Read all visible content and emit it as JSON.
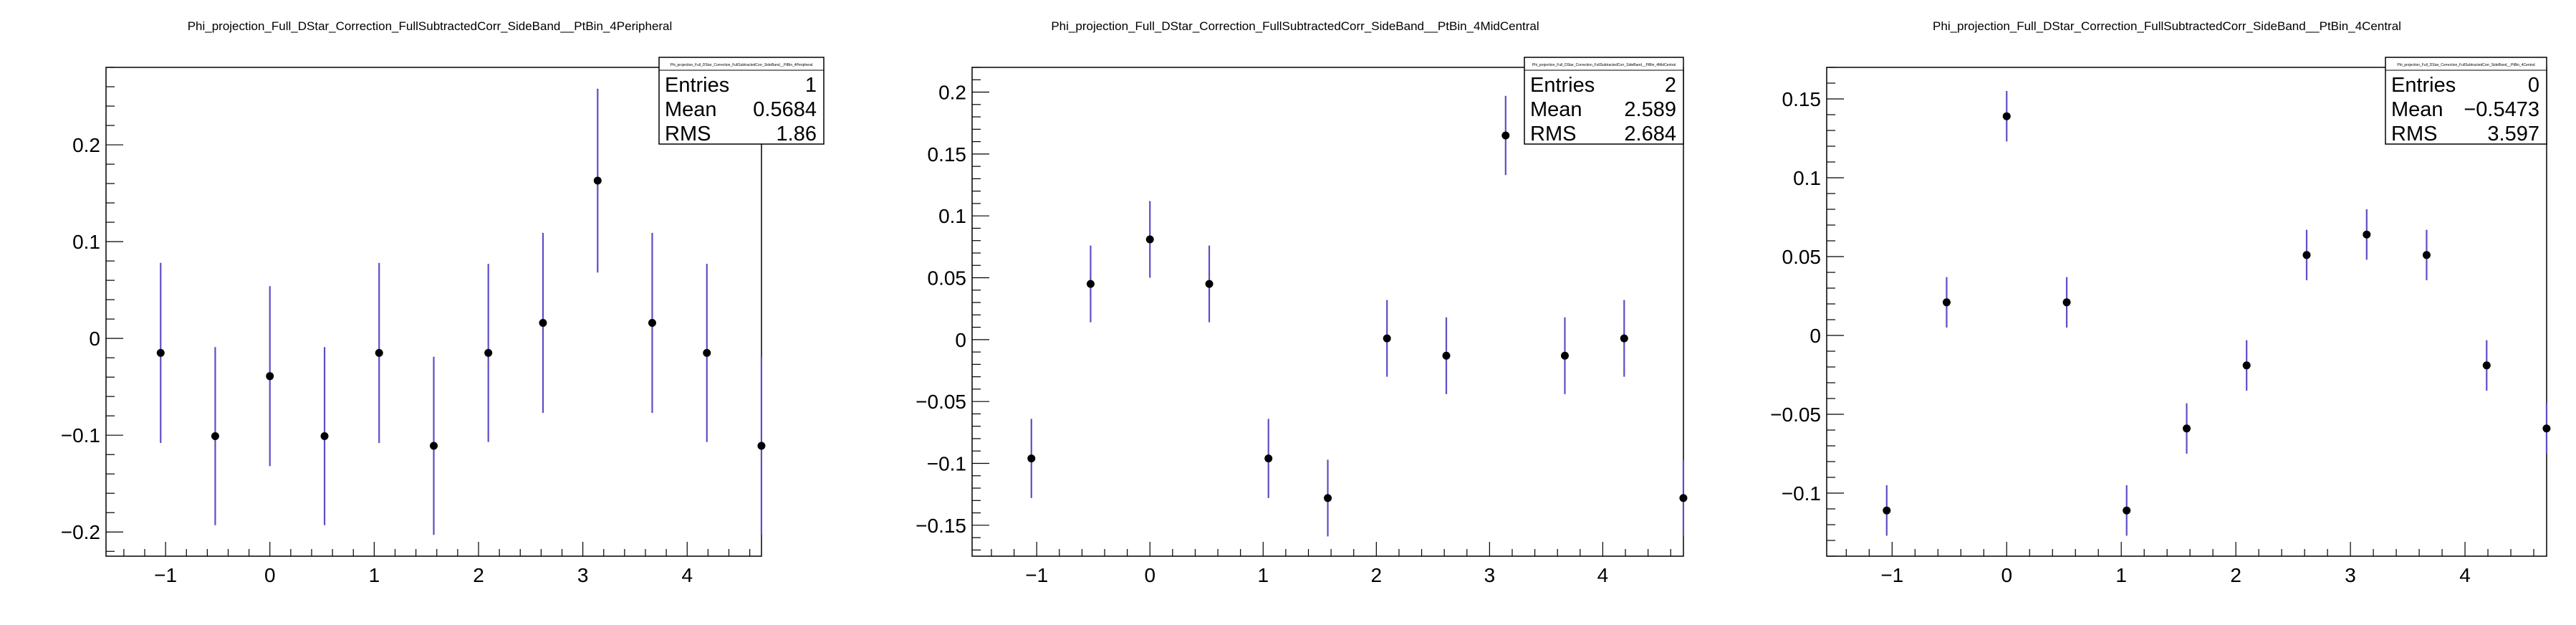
{
  "chart_data": [
    {
      "type": "scatter",
      "title": "Phi_projection_Full_DStar_Correction_FullSubtractedCorr_SideBand__PtBin_4Peripheral",
      "xlim": [
        -1.5708,
        4.7124
      ],
      "ylim": [
        -0.225,
        0.28
      ],
      "xticks": [
        -1,
        0,
        1,
        2,
        3,
        4
      ],
      "yticks": [
        -0.2,
        -0.1,
        0,
        0.1,
        0.2
      ],
      "x": [
        -1.047,
        -0.524,
        0.0,
        0.524,
        1.047,
        1.571,
        2.094,
        2.618,
        3.142,
        3.665,
        4.189,
        4.712
      ],
      "y": [
        -0.015,
        -0.101,
        -0.039,
        -0.101,
        -0.015,
        -0.111,
        -0.015,
        0.016,
        0.163,
        0.016,
        -0.015,
        -0.111
      ],
      "err": [
        0.093,
        0.092,
        0.093,
        0.092,
        0.093,
        0.092,
        0.092,
        0.093,
        0.095,
        0.093,
        0.092,
        0.092
      ],
      "stats": {
        "title": "Phi_projection_Full_DStar_Correction_FullSubtractedCorr_SideBand__PtBin_4Peripheral",
        "rows": [
          {
            "label": "Entries",
            "value": "1"
          },
          {
            "label": "Mean",
            "value": "0.5684"
          },
          {
            "label": "RMS",
            "value": "1.86"
          }
        ]
      }
    },
    {
      "type": "scatter",
      "title": "Phi_projection_Full_DStar_Correction_FullSubtractedCorr_SideBand__PtBin_4MidCentral",
      "xlim": [
        -1.5708,
        4.7124
      ],
      "ylim": [
        -0.175,
        0.22
      ],
      "xticks": [
        -1,
        0,
        1,
        2,
        3,
        4
      ],
      "yticks": [
        -0.15,
        -0.1,
        -0.05,
        0,
        0.05,
        0.1,
        0.15,
        0.2
      ],
      "x": [
        -1.047,
        -0.524,
        0.0,
        0.524,
        1.047,
        1.571,
        2.094,
        2.618,
        3.142,
        3.665,
        4.189,
        4.712
      ],
      "y": [
        -0.096,
        0.045,
        0.081,
        0.045,
        -0.096,
        -0.128,
        0.001,
        -0.013,
        0.165,
        -0.013,
        0.001,
        -0.128
      ],
      "err": [
        0.032,
        0.031,
        0.031,
        0.031,
        0.032,
        0.031,
        0.031,
        0.031,
        0.032,
        0.031,
        0.031,
        0.031
      ],
      "stats": {
        "title": "Phi_projection_Full_DStar_Correction_FullSubtractedCorr_SideBand__PtBin_4MidCentral",
        "rows": [
          {
            "label": "Entries",
            "value": "2"
          },
          {
            "label": "Mean",
            "value": "2.589"
          },
          {
            "label": "RMS",
            "value": "2.684"
          }
        ]
      }
    },
    {
      "type": "scatter",
      "title": "Phi_projection_Full_DStar_Correction_FullSubtractedCorr_SideBand__PtBin_4Central",
      "xlim": [
        -1.5708,
        4.7124
      ],
      "ylim": [
        -0.14,
        0.17
      ],
      "xticks": [
        -1,
        0,
        1,
        2,
        3,
        4
      ],
      "yticks": [
        -0.1,
        -0.05,
        0,
        0.05,
        0.1,
        0.15
      ],
      "x": [
        -1.047,
        -0.524,
        0.0,
        0.524,
        1.047,
        1.571,
        2.094,
        2.618,
        3.142,
        3.665,
        4.189,
        4.712
      ],
      "y": [
        -0.111,
        0.021,
        0.139,
        0.021,
        -0.111,
        -0.059,
        -0.019,
        0.051,
        0.064,
        0.051,
        -0.019,
        -0.059
      ],
      "err": [
        0.016,
        0.016,
        0.016,
        0.016,
        0.016,
        0.016,
        0.016,
        0.016,
        0.016,
        0.016,
        0.016,
        0.016
      ],
      "stats": {
        "title": "Phi_projection_Full_DStar_Correction_FullSubtractedCorr_SideBand__PtBin_4Central",
        "rows": [
          {
            "label": "Entries",
            "value": "0"
          },
          {
            "label": "Mean",
            "value": "−0.5473"
          },
          {
            "label": "RMS",
            "value": "3.597"
          }
        ]
      }
    }
  ],
  "colors": {
    "errorbar": "#5b4fc4",
    "marker": "#000000",
    "frame": "#000000",
    "background": "#ffffff"
  }
}
